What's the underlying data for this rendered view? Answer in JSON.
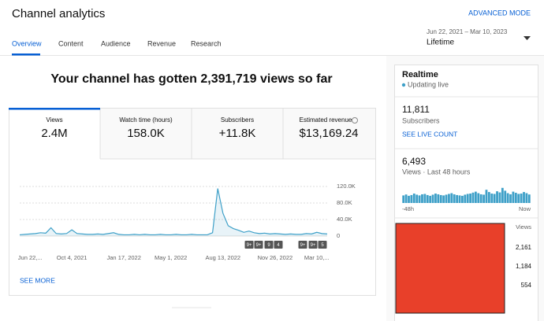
{
  "header": {
    "title": "Channel analytics",
    "advanced": "ADVANCED MODE",
    "tabs": [
      "Overview",
      "Content",
      "Audience",
      "Revenue",
      "Research"
    ],
    "date_range": "Jun 22, 2021 – Mar 10, 2023",
    "period": "Lifetime"
  },
  "headline": "Your channel has gotten 2,391,719 views so far",
  "metrics": [
    {
      "label": "Views",
      "value": "2.4M"
    },
    {
      "label": "Watch time (hours)",
      "value": "158.0K"
    },
    {
      "label": "Subscribers",
      "value": "+11.8K"
    },
    {
      "label": "Estimated revenue",
      "value": "$13,169.24"
    }
  ],
  "see_more": "SEE MORE",
  "markers": [
    "9+",
    "9+",
    "9",
    "4",
    "9+",
    "9+",
    "5"
  ],
  "realtime": {
    "title": "Realtime",
    "status": "Updating live",
    "subscribers": "11,811",
    "subscribers_label": "Subscribers",
    "live_count": "SEE LIVE COUNT",
    "views": "6,493",
    "views_label": "Views · Last 48 hours",
    "start": "-48h",
    "end": "Now",
    "redacted_axis": [
      "Views",
      "2,161",
      "1,184",
      "554"
    ]
  },
  "chart_data": [
    {
      "type": "line",
      "color": "#3ea0c8",
      "ylim": [
        0,
        120000
      ],
      "yticks": [
        0,
        {
          "value": 40000,
          "label": "40.0K"
        },
        {
          "value": 80000,
          "label": "80.0K"
        },
        {
          "value": 120000,
          "label": "120.0K"
        }
      ],
      "categories": [
        null,
        null,
        "Jun 22,...",
        null,
        null,
        null,
        null,
        null,
        null,
        null,
        "Oct 4, 2021",
        null,
        null,
        null,
        null,
        null,
        null,
        null,
        null,
        null,
        "Jan 17, 2022",
        null,
        null,
        null,
        null,
        null,
        null,
        null,
        null,
        "May 1, 2022",
        null,
        null,
        null,
        null,
        null,
        null,
        null,
        null,
        null,
        "Aug 13, 2022",
        null,
        null,
        null,
        null,
        null,
        null,
        null,
        null,
        null,
        "Nov 26, 2022",
        null,
        null,
        null,
        null,
        null,
        null,
        null,
        "Mar 10,...",
        null,
        null
      ],
      "values": [
        3000,
        4000,
        5000,
        6000,
        8000,
        7000,
        20000,
        6000,
        5000,
        6000,
        15000,
        6000,
        5000,
        4000,
        4000,
        5000,
        4000,
        6000,
        8000,
        4000,
        3000,
        3000,
        4000,
        3000,
        4000,
        3000,
        3000,
        4000,
        3000,
        3000,
        4000,
        3000,
        3000,
        4000,
        3000,
        3000,
        3000,
        8000,
        115000,
        55000,
        25000,
        18000,
        14000,
        9000,
        12000,
        8000,
        6000,
        7000,
        5000,
        6000,
        5000,
        4000,
        5000,
        4000,
        4000,
        6000,
        5000,
        9000,
        6000,
        5000
      ]
    },
    {
      "type": "bar",
      "color": "#3ea0c8",
      "ylim": [
        0,
        100
      ],
      "values": [
        40,
        45,
        38,
        42,
        50,
        44,
        40,
        46,
        48,
        42,
        38,
        44,
        50,
        46,
        42,
        40,
        44,
        48,
        52,
        46,
        42,
        40,
        38,
        44,
        48,
        50,
        55,
        60,
        52,
        46,
        44,
        70,
        58,
        50,
        48,
        62,
        56,
        80,
        65,
        52,
        46,
        60,
        54,
        48,
        50,
        58,
        52,
        45
      ]
    }
  ]
}
